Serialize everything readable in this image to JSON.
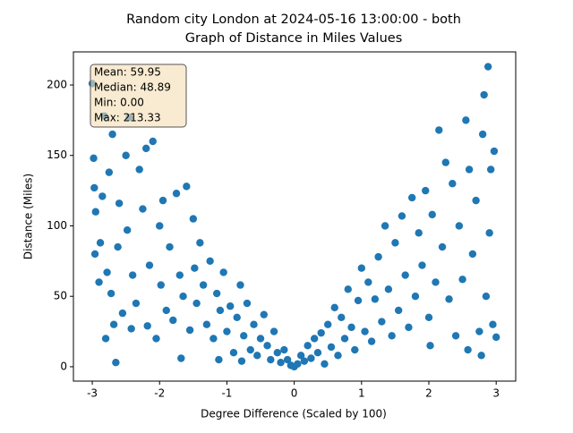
{
  "chart_data": {
    "type": "scatter",
    "title": "Random city London at 2024-05-16 13:00:00  - both",
    "subtitle": "Graph of Distance in Miles Values",
    "x_label": "Degree Difference (Scaled by 100)",
    "y_label": "Distance (Miles)",
    "annotation": [
      "Mean: 59.95",
      "Median: 48.89",
      "Min: 0.00",
      "Max: 213.33"
    ],
    "color": "#1f77b4",
    "xlim": [
      -3.28,
      3.29
    ],
    "ylim": [
      -10.2,
      223.5
    ],
    "xticks": [
      -3,
      -2,
      -1,
      0,
      1,
      2,
      3
    ],
    "yticks": [
      0,
      50,
      100,
      150,
      200
    ],
    "x": [
      -3.0,
      -2.98,
      -2.97,
      -2.95,
      -2.96,
      -2.9,
      -2.88,
      -2.85,
      -2.82,
      -2.8,
      -2.78,
      -2.75,
      -2.72,
      -2.7,
      -2.68,
      -2.65,
      -2.62,
      -2.6,
      -2.55,
      -2.5,
      -2.48,
      -2.45,
      -2.42,
      -2.4,
      -2.35,
      -2.3,
      -2.25,
      -2.2,
      -2.18,
      -2.15,
      -2.1,
      -2.05,
      -2.0,
      -1.98,
      -1.95,
      -1.9,
      -1.85,
      -1.8,
      -1.75,
      -1.7,
      -1.68,
      -1.65,
      -1.6,
      -1.55,
      -1.5,
      -1.48,
      -1.45,
      -1.4,
      -1.35,
      -1.3,
      -1.25,
      -1.2,
      -1.15,
      -1.12,
      -1.1,
      -1.05,
      -1.0,
      -0.95,
      -0.9,
      -0.85,
      -0.8,
      -0.78,
      -0.75,
      -0.7,
      -0.65,
      -0.6,
      -0.55,
      -0.5,
      -0.45,
      -0.4,
      -0.35,
      -0.3,
      -0.25,
      -0.2,
      -0.15,
      -0.1,
      -0.05,
      0,
      0.05,
      0.1,
      0.15,
      0.2,
      0.25,
      0.3,
      0.35,
      0.4,
      0.45,
      0.5,
      0.55,
      0.6,
      0.65,
      0.7,
      0.75,
      0.8,
      0.85,
      0.9,
      0.95,
      1.0,
      1.05,
      1.1,
      1.15,
      1.2,
      1.25,
      1.3,
      1.35,
      1.4,
      1.45,
      1.5,
      1.55,
      1.6,
      1.65,
      1.7,
      1.75,
      1.8,
      1.85,
      1.9,
      1.95,
      2.0,
      2.02,
      2.05,
      2.1,
      2.15,
      2.2,
      2.25,
      2.3,
      2.35,
      2.4,
      2.45,
      2.5,
      2.55,
      2.58,
      2.6,
      2.65,
      2.7,
      2.75,
      2.78,
      2.8,
      2.82,
      2.85,
      2.88,
      2.9,
      2.92,
      2.95,
      2.97,
      3.0
    ],
    "values": [
      201,
      148,
      127,
      110,
      80,
      60,
      88,
      121,
      178,
      20,
      67,
      138,
      52,
      165,
      30,
      3,
      85,
      116,
      38,
      150,
      97,
      177,
      27,
      65,
      45,
      140,
      112,
      155,
      29,
      72,
      160,
      20,
      100,
      58,
      118,
      40,
      85,
      33,
      123,
      65,
      6,
      50,
      128,
      26,
      105,
      70,
      45,
      88,
      58,
      30,
      75,
      20,
      52,
      5,
      40,
      67,
      25,
      43,
      10,
      35,
      58,
      4,
      22,
      45,
      12,
      30,
      8,
      20,
      37,
      15,
      5,
      25,
      10,
      3,
      12,
      5,
      1,
      0,
      2,
      8,
      4,
      15,
      6,
      20,
      10,
      24,
      2,
      30,
      14,
      42,
      8,
      35,
      20,
      55,
      28,
      12,
      47,
      70,
      25,
      60,
      18,
      48,
      78,
      32,
      100,
      55,
      22,
      88,
      40,
      107,
      65,
      28,
      120,
      50,
      95,
      72,
      125,
      35,
      15,
      108,
      60,
      168,
      85,
      145,
      48,
      130,
      22,
      100,
      62,
      175,
      12,
      140,
      80,
      118,
      25,
      8,
      165,
      193,
      50,
      213,
      95,
      140,
      30,
      153,
      21
    ]
  }
}
